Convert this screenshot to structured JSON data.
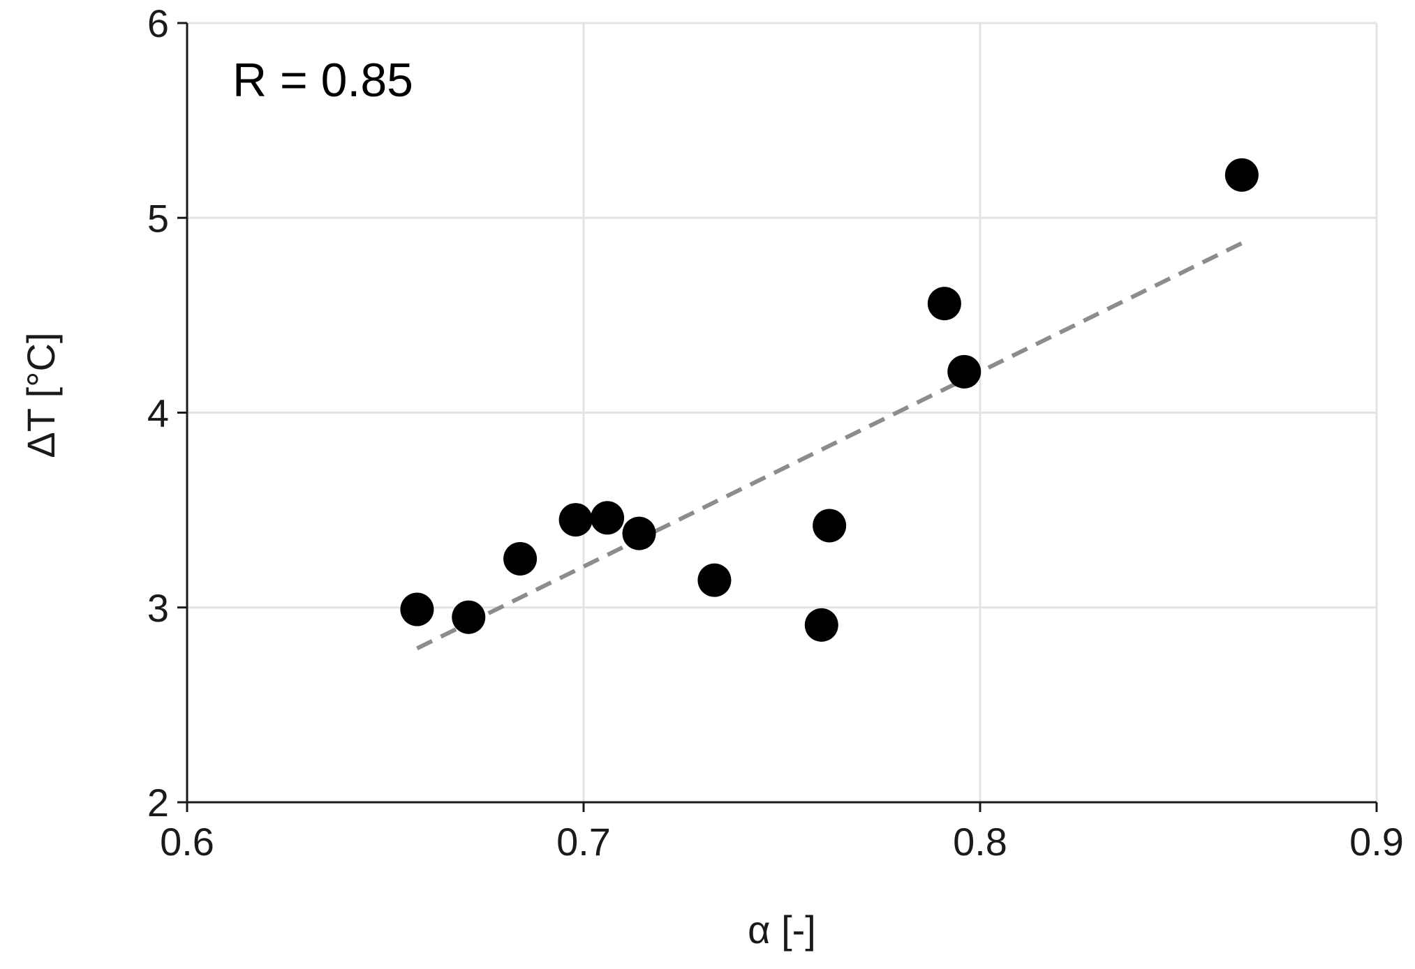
{
  "chart_data": {
    "type": "scatter",
    "title": "",
    "xlabel": "α [-]",
    "ylabel": "ΔT [°C]",
    "xlim": [
      0.6,
      0.9
    ],
    "ylim": [
      2,
      6
    ],
    "x_ticks": [
      0.6,
      0.7,
      0.8,
      0.9
    ],
    "x_tick_labels": [
      "0.6",
      "0.7",
      "0.8",
      "0.9"
    ],
    "y_ticks": [
      2,
      3,
      4,
      5,
      6
    ],
    "y_tick_labels": [
      "2",
      "3",
      "4",
      "5",
      "6"
    ],
    "grid": true,
    "annotation": "R = 0.85",
    "series": [
      {
        "x": [
          0.658,
          0.671,
          0.684,
          0.698,
          0.706,
          0.714,
          0.733,
          0.76,
          0.762,
          0.791,
          0.796,
          0.866
        ],
        "y": [
          2.99,
          2.95,
          3.25,
          3.45,
          3.46,
          3.38,
          3.14,
          2.91,
          3.42,
          4.56,
          4.21,
          5.22
        ]
      }
    ],
    "trendline": {
      "x": [
        0.658,
        0.866
      ],
      "y": [
        2.79,
        4.87
      ],
      "style": "dashed"
    },
    "colors": {
      "points": "#000000",
      "trendline": "#8c8c8c",
      "grid": "#e3e3e3",
      "axis": "#1a1a1a"
    }
  }
}
